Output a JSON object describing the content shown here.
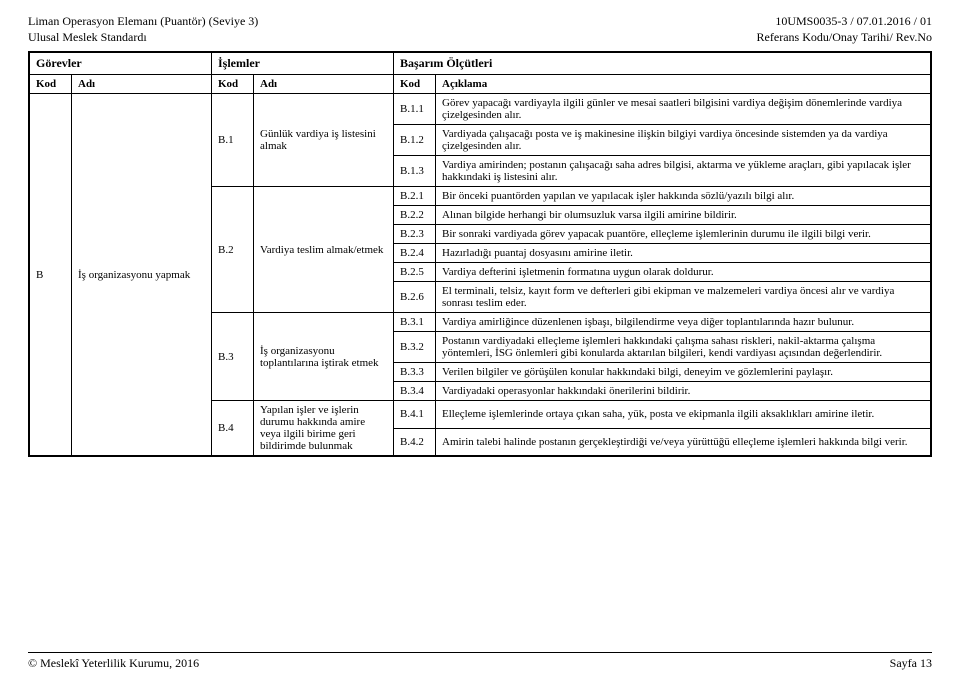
{
  "header": {
    "left1": "Liman Operasyon Elemanı (Puantör) (Seviye 3)",
    "left2": "Ulusal Meslek Standardı",
    "right1": "10UMS0035-3 / 07.01.2016 / 01",
    "right2": "Referans Kodu/Onay Tarihi/ Rev.No"
  },
  "cols": {
    "gorevler": "Görevler",
    "islemler": "İşlemler",
    "basarim": "Başarım Ölçütleri",
    "kod": "Kod",
    "adi": "Adı",
    "aciklama": "Açıklama"
  },
  "task": {
    "kod": "B",
    "adi": "İş organizasyonu yapmak"
  },
  "ops": {
    "b1": {
      "kod": "B.1",
      "adi": "Günlük vardiya iş listesini almak"
    },
    "b2": {
      "kod": "B.2",
      "adi": "Vardiya teslim almak/etmek"
    },
    "b3": {
      "kod": "B.3",
      "adi": "İş organizasyonu toplantılarına iştirak etmek"
    },
    "b4": {
      "kod": "B.4",
      "adi": "Yapılan işler ve işlerin durumu hakkında amire veya ilgili birime geri bildirimde bulunmak"
    }
  },
  "rows": {
    "b11": {
      "kod": "B.1.1",
      "text": "Görev yapacağı vardiyayla ilgili günler ve mesai saatleri bilgisini vardiya değişim dönemlerinde vardiya çizelgesinden alır."
    },
    "b12": {
      "kod": "B.1.2",
      "text": "Vardiyada çalışacağı posta ve iş makinesine ilişkin bilgiyi vardiya öncesinde sistemden ya da vardiya çizelgesinden alır."
    },
    "b13": {
      "kod": "B.1.3",
      "text": "Vardiya amirinden; postanın çalışacağı saha adres bilgisi, aktarma ve yükleme araçları, gibi yapılacak işler hakkındaki iş listesini alır."
    },
    "b21": {
      "kod": "B.2.1",
      "text": "Bir önceki puantörden yapılan ve yapılacak işler hakkında sözlü/yazılı bilgi alır."
    },
    "b22": {
      "kod": "B.2.2",
      "text": "Alınan bilgide herhangi bir olumsuzluk varsa ilgili amirine bildirir."
    },
    "b23": {
      "kod": "B.2.3",
      "text": "Bir sonraki vardiyada görev yapacak puantöre, elleçleme işlemlerinin durumu ile ilgili bilgi verir."
    },
    "b24": {
      "kod": "B.2.4",
      "text": "Hazırladığı puantaj dosyasını amirine iletir."
    },
    "b25": {
      "kod": "B.2.5",
      "text": "Vardiya defterini işletmenin formatına uygun olarak doldurur."
    },
    "b26": {
      "kod": "B.2.6",
      "text": "El terminali, telsiz, kayıt form ve defterleri gibi ekipman ve malzemeleri vardiya öncesi alır ve vardiya sonrası teslim eder."
    },
    "b31": {
      "kod": "B.3.1",
      "text": "Vardiya amirliğince düzenlenen işbaşı, bilgilendirme veya diğer toplantılarında hazır bulunur."
    },
    "b32": {
      "kod": "B.3.2",
      "text": "Postanın vardiyadaki elleçleme işlemleri hakkındaki çalışma sahası riskleri, nakil-aktarma çalışma yöntemleri, İSG önlemleri gibi konularda aktarılan bilgileri, kendi vardiyası açısından değerlendirir."
    },
    "b33": {
      "kod": "B.3.3",
      "text": "Verilen bilgiler ve görüşülen konular hakkındaki bilgi, deneyim ve gözlemlerini paylaşır."
    },
    "b34": {
      "kod": "B.3.4",
      "text": "Vardiyadaki operasyonlar hakkındaki önerilerini bildirir."
    },
    "b41": {
      "kod": "B.4.1",
      "text": "Elleçleme işlemlerinde ortaya çıkan saha, yük, posta ve ekipmanla ilgili aksaklıkları amirine iletir."
    },
    "b42": {
      "kod": "B.4.2",
      "text": "Amirin talebi halinde postanın gerçekleştirdiği ve/veya yürüttüğü elleçleme işlemleri hakkında bilgi verir."
    }
  },
  "footer": {
    "left": "© Meslekî Yeterlilik Kurumu, 2016",
    "right": "Sayfa 13"
  }
}
